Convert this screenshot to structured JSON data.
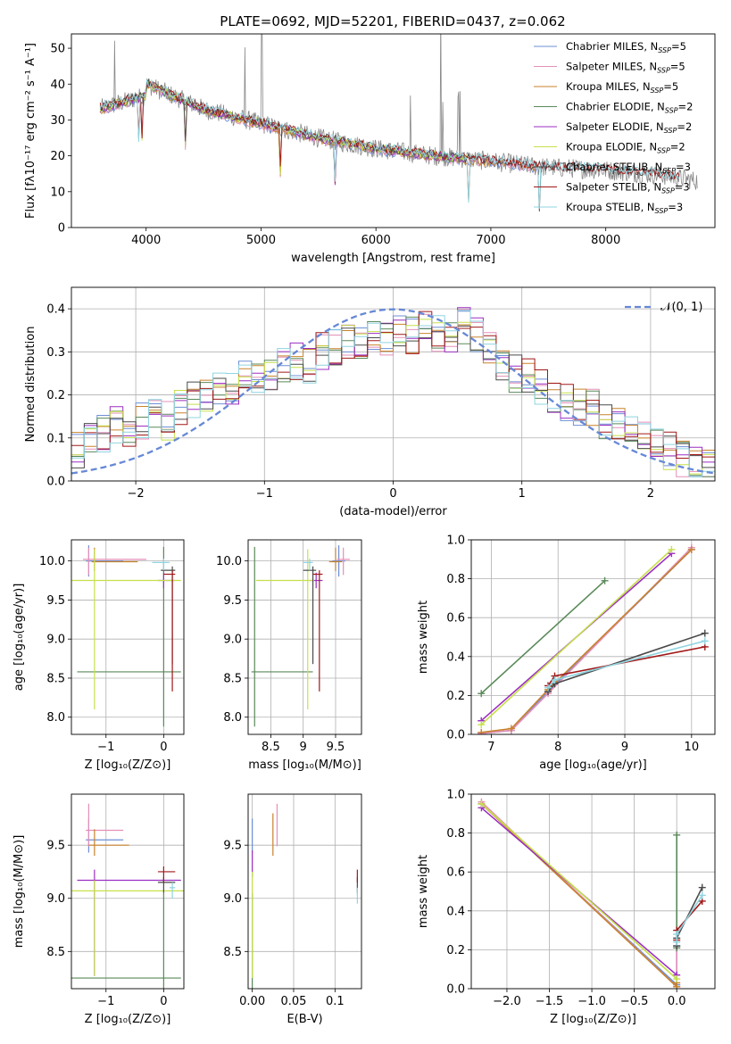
{
  "figure_title": "PLATE=0692, MJD=52201, FIBERID=0437, z=0.062",
  "palette": {
    "chabrier_miles": "#6d8fd6",
    "salpeter_miles": "#e48fb8",
    "kroupa_miles": "#c8822c",
    "chabrier_elodie": "#5a8a5a",
    "salpeter_elodie": "#9b2fc2",
    "kroupa_elodie": "#c6e04a",
    "chabrier_stelib": "#4a4a4a",
    "salpeter_stelib": "#a01818",
    "kroupa_stelib": "#8fd4e0",
    "data": "#888888",
    "gaussian": "#6688d6"
  },
  "chart_data": [
    {
      "id": "spectrum",
      "type": "line",
      "title": "PLATE=0692, MJD=52201, FIBERID=0437, z=0.062",
      "xlabel": "wavelength [Angstrom, rest frame]",
      "ylabel": "Flux [fλ10⁻¹⁷ erg cm⁻² s⁻¹ A⁻¹]",
      "xlim": [
        3350,
        8950
      ],
      "ylim": [
        0,
        54
      ],
      "xticks": [
        4000,
        5000,
        6000,
        7000,
        8000
      ],
      "yticks": [
        0,
        10,
        20,
        30,
        40,
        50
      ],
      "grid": false,
      "legend_position": "top-right",
      "legend": [
        {
          "label": "Chabrier MILES, N",
          "sub": "SSP",
          "tail": "=5",
          "color_key": "chabrier_miles"
        },
        {
          "label": "Salpeter MILES, N",
          "sub": "SSP",
          "tail": "=5",
          "color_key": "salpeter_miles"
        },
        {
          "label": "Kroupa MILES, N",
          "sub": "SSP",
          "tail": "=5",
          "color_key": "kroupa_miles"
        },
        {
          "label": "Chabrier ELODIE, N",
          "sub": "SSP",
          "tail": "=2",
          "color_key": "chabrier_elodie"
        },
        {
          "label": "Salpeter ELODIE, N",
          "sub": "SSP",
          "tail": "=2",
          "color_key": "salpeter_elodie"
        },
        {
          "label": "Kroupa ELODIE, N",
          "sub": "SSP",
          "tail": "=2",
          "color_key": "kroupa_elodie"
        },
        {
          "label": "Chabrier STELIB, N",
          "sub": "SSP",
          "tail": "=3",
          "color_key": "chabrier_stelib"
        },
        {
          "label": "Salpeter STELIB, N",
          "sub": "SSP",
          "tail": "=3",
          "color_key": "salpeter_stelib"
        },
        {
          "label": "Kroupa STELIB, N",
          "sub": "SSP",
          "tail": "=3",
          "color_key": "kroupa_stelib"
        }
      ],
      "continuum": {
        "x": [
          3600,
          4000,
          4500,
          5000,
          5500,
          6000,
          6500,
          7000,
          7400,
          8000,
          8500,
          8800
        ],
        "y": [
          36,
          40,
          33,
          29,
          25,
          22,
          20,
          18.5,
          17,
          16,
          14.5,
          13
        ]
      },
      "emission_lines": [
        3727,
        4861,
        5007,
        6300,
        6563,
        6583,
        6717,
        6731
      ],
      "absorption_lines": [
        3934,
        3969,
        4340,
        5170,
        5650,
        6800,
        7420
      ]
    },
    {
      "id": "residuals",
      "type": "step",
      "xlabel": "(data-model)/error",
      "ylabel": "Normed distribution",
      "xlim": [
        -2.5,
        2.5
      ],
      "ylim": [
        0,
        0.45
      ],
      "xticks": [
        -2,
        -1,
        0,
        1,
        2
      ],
      "yticks": [
        0.0,
        0.1,
        0.2,
        0.3,
        0.4
      ],
      "grid": true,
      "legend_position": "top-right",
      "legend": [
        {
          "label": "𝒩(0, 1)",
          "color_key": "gaussian"
        }
      ],
      "gaussian": {
        "mu": 0,
        "sigma": 1
      },
      "bins": {
        "start": -2.5,
        "width": 0.1
      },
      "hist_base": [
        0.07,
        0.1,
        0.11,
        0.13,
        0.12,
        0.14,
        0.15,
        0.14,
        0.17,
        0.19,
        0.2,
        0.21,
        0.22,
        0.24,
        0.25,
        0.24,
        0.27,
        0.28,
        0.27,
        0.3,
        0.31,
        0.33,
        0.32,
        0.34,
        0.33,
        0.35,
        0.34,
        0.36,
        0.34,
        0.33,
        0.36,
        0.34,
        0.3,
        0.27,
        0.25,
        0.24,
        0.22,
        0.2,
        0.18,
        0.17,
        0.17,
        0.14,
        0.13,
        0.12,
        0.1,
        0.08,
        0.07,
        0.05,
        0.04,
        0.03
      ]
    },
    {
      "id": "age_vs_Z",
      "type": "errorbar",
      "xlabel": "Z [log₁₀(Z/Z⊙)]",
      "ylabel": "age  [log₁₀(age/yr)]",
      "xlim": [
        -1.6,
        0.35
      ],
      "ylim": [
        7.78,
        10.27
      ],
      "xticks": [
        -1,
        0
      ],
      "yticks": [
        8.0,
        8.5,
        9.0,
        9.5,
        10.0
      ],
      "grid": true,
      "points": [
        {
          "model": "chabrier_miles",
          "x": -1.3,
          "xerr": [
            0.05,
            0.6
          ],
          "y": 10.0,
          "yerr": [
            0.2,
            0.2
          ]
        },
        {
          "model": "salpeter_miles",
          "x": -1.3,
          "xerr": [
            0.1,
            1.0
          ],
          "y": 10.02,
          "yerr": [
            0.2,
            0.15
          ]
        },
        {
          "model": "kroupa_miles",
          "x": -1.2,
          "xerr": [
            0.05,
            0.75
          ],
          "y": 9.99,
          "yerr": [
            0.12,
            0.18
          ]
        },
        {
          "model": "chabrier_elodie",
          "x": 0.0,
          "xerr": [
            1.5,
            0.3
          ],
          "y": 8.58,
          "yerr": [
            0.7,
            1.6
          ]
        },
        {
          "model": "salpeter_elodie",
          "x": 0.0,
          "xerr": [
            0.1,
            0.2
          ],
          "y": 9.75,
          "yerr": [
            0.1,
            0.1
          ]
        },
        {
          "model": "kroupa_elodie",
          "x": -1.2,
          "xerr": [
            0.4,
            1.5
          ],
          "y": 9.75,
          "yerr": [
            1.65,
            0.4
          ]
        },
        {
          "model": "chabrier_stelib",
          "x": 0.15,
          "xerr": [
            0.2,
            0.05
          ],
          "y": 9.88,
          "yerr": [
            1.2,
            0.05
          ]
        },
        {
          "model": "salpeter_stelib",
          "x": 0.15,
          "xerr": [
            0.15,
            0.05
          ],
          "y": 9.83,
          "yerr": [
            1.5,
            0.05
          ]
        },
        {
          "model": "kroupa_stelib",
          "x": 0.0,
          "xerr": [
            0.2,
            0.1
          ],
          "y": 9.98,
          "yerr": [
            0.1,
            0.05
          ]
        }
      ]
    },
    {
      "id": "age_vs_mass",
      "type": "errorbar",
      "xlabel": "mass [log₁₀(M/M⊙)]",
      "xlim": [
        8.15,
        9.9
      ],
      "ylim": [
        7.78,
        10.27
      ],
      "xticks": [
        8.5,
        9.0,
        9.5
      ],
      "yticks": [
        8.0,
        8.5,
        9.0,
        9.5,
        10.0
      ],
      "grid": true,
      "points": [
        {
          "model": "chabrier_miles",
          "x": 9.55,
          "xerr": [
            0.1,
            0.1
          ],
          "y": 10.0,
          "yerr": [
            0.2,
            0.2
          ]
        },
        {
          "model": "salpeter_miles",
          "x": 9.62,
          "xerr": [
            0.1,
            0.1
          ],
          "y": 10.02,
          "yerr": [
            0.2,
            0.15
          ]
        },
        {
          "model": "kroupa_miles",
          "x": 9.5,
          "xerr": [
            0.1,
            0.1
          ],
          "y": 9.99,
          "yerr": [
            0.12,
            0.18
          ]
        },
        {
          "model": "chabrier_elodie",
          "x": 8.25,
          "xerr": [
            0.05,
            0.9
          ],
          "y": 8.58,
          "yerr": [
            0.7,
            1.6
          ]
        },
        {
          "model": "salpeter_elodie",
          "x": 9.2,
          "xerr": [
            0.1,
            0.1
          ],
          "y": 9.75,
          "yerr": [
            0.1,
            0.1
          ]
        },
        {
          "model": "kroupa_elodie",
          "x": 9.07,
          "xerr": [
            0.8,
            0.1
          ],
          "y": 9.75,
          "yerr": [
            1.65,
            0.4
          ]
        },
        {
          "model": "chabrier_stelib",
          "x": 9.15,
          "xerr": [
            0.15,
            0.05
          ],
          "y": 9.88,
          "yerr": [
            1.2,
            0.05
          ]
        },
        {
          "model": "salpeter_stelib",
          "x": 9.25,
          "xerr": [
            0.1,
            0.05
          ],
          "y": 9.83,
          "yerr": [
            1.5,
            0.05
          ]
        },
        {
          "model": "kroupa_stelib",
          "x": 9.1,
          "xerr": [
            0.1,
            0.05
          ],
          "y": 9.98,
          "yerr": [
            0.1,
            0.05
          ]
        }
      ]
    },
    {
      "id": "weight_vs_age",
      "type": "line",
      "xlabel": "age  [log₁₀(age/yr)]",
      "ylabel": "mass weight",
      "xlim": [
        6.7,
        10.35
      ],
      "ylim": [
        0,
        1.0
      ],
      "xticks": [
        7,
        8,
        9,
        10
      ],
      "yticks": [
        0.0,
        0.2,
        0.4,
        0.6,
        0.8,
        1.0
      ],
      "grid": true,
      "series": [
        {
          "model": "chabrier_miles",
          "x": [
            6.85,
            7.3,
            7.85,
            10.0
          ],
          "y": [
            0.005,
            0.02,
            0.22,
            0.95
          ]
        },
        {
          "model": "salpeter_miles",
          "x": [
            6.85,
            7.3,
            7.85,
            10.0
          ],
          "y": [
            0.005,
            0.02,
            0.21,
            0.96
          ]
        },
        {
          "model": "kroupa_miles",
          "x": [
            6.85,
            7.3,
            7.85,
            10.0
          ],
          "y": [
            0.01,
            0.03,
            0.23,
            0.95
          ]
        },
        {
          "model": "chabrier_elodie",
          "x": [
            6.85,
            8.7
          ],
          "y": [
            0.21,
            0.79
          ]
        },
        {
          "model": "salpeter_elodie",
          "x": [
            6.85,
            9.7
          ],
          "y": [
            0.07,
            0.93
          ]
        },
        {
          "model": "kroupa_elodie",
          "x": [
            6.85,
            9.7
          ],
          "y": [
            0.05,
            0.95
          ]
        },
        {
          "model": "chabrier_stelib",
          "x": [
            7.85,
            7.95,
            10.2
          ],
          "y": [
            0.22,
            0.26,
            0.52
          ]
        },
        {
          "model": "salpeter_stelib",
          "x": [
            7.85,
            7.95,
            10.2
          ],
          "y": [
            0.25,
            0.3,
            0.45
          ]
        },
        {
          "model": "kroupa_stelib",
          "x": [
            7.85,
            7.95,
            10.2
          ],
          "y": [
            0.24,
            0.28,
            0.48
          ]
        }
      ]
    },
    {
      "id": "mass_vs_Z",
      "type": "errorbar",
      "xlabel": "Z [log₁₀(Z/Z⊙)]",
      "ylabel": "mass [log₁₀(M/M⊙)]",
      "xlim": [
        -1.6,
        0.35
      ],
      "ylim": [
        8.15,
        9.98
      ],
      "xticks": [
        -1,
        0
      ],
      "yticks": [
        8.5,
        9.0,
        9.5
      ],
      "grid": true,
      "points": [
        {
          "model": "chabrier_miles",
          "x": -1.3,
          "xerr": [
            0.05,
            0.6
          ],
          "y": 9.55,
          "yerr": [
            0.12,
            0.2
          ]
        },
        {
          "model": "salpeter_miles",
          "x": -1.3,
          "xerr": [
            0.05,
            0.6
          ],
          "y": 9.64,
          "yerr": [
            0.15,
            0.25
          ]
        },
        {
          "model": "kroupa_miles",
          "x": -1.2,
          "xerr": [
            0.1,
            0.6
          ],
          "y": 9.5,
          "yerr": [
            0.1,
            0.15
          ]
        },
        {
          "model": "chabrier_elodie",
          "x": 0.0,
          "xerr": [
            1.6,
            0.3
          ],
          "y": 8.25,
          "yerr": [
            0.1,
            0.8
          ]
        },
        {
          "model": "salpeter_elodie",
          "x": -1.2,
          "xerr": [
            0.3,
            1.5
          ],
          "y": 9.17,
          "yerr": [
            0.9,
            0.1
          ]
        },
        {
          "model": "kroupa_elodie",
          "x": -1.2,
          "xerr": [
            0.4,
            1.6
          ],
          "y": 9.07,
          "yerr": [
            0.8,
            0.1
          ]
        },
        {
          "model": "chabrier_stelib",
          "x": 0.0,
          "xerr": [
            0.1,
            0.2
          ],
          "y": 9.15,
          "yerr": [
            0.1,
            0.05
          ]
        },
        {
          "model": "salpeter_stelib",
          "x": 0.0,
          "xerr": [
            0.1,
            0.2
          ],
          "y": 9.25,
          "yerr": [
            0.1,
            0.05
          ]
        },
        {
          "model": "kroupa_stelib",
          "x": 0.15,
          "xerr": [
            0.05,
            0.05
          ],
          "y": 9.1,
          "yerr": [
            0.1,
            0.05
          ]
        }
      ]
    },
    {
      "id": "mass_vs_ebv",
      "type": "errorbar",
      "xlabel": "E(B-V)",
      "xlim": [
        -0.005,
        0.132
      ],
      "ylim": [
        8.15,
        9.98
      ],
      "xticks": [
        0.0,
        0.05,
        0.1
      ],
      "yticks": [
        8.5,
        9.0,
        9.5
      ],
      "grid": true,
      "points": [
        {
          "model": "chabrier_miles",
          "x": 0.0,
          "y": 9.55,
          "yerr": [
            0.12,
            0.2
          ]
        },
        {
          "model": "salpeter_miles",
          "x": 0.03,
          "y": 9.64,
          "yerr": [
            0.15,
            0.25
          ]
        },
        {
          "model": "kroupa_miles",
          "x": 0.025,
          "y": 9.6,
          "yerr": [
            0.2,
            0.2
          ]
        },
        {
          "model": "chabrier_elodie",
          "x": 0.0,
          "y": 8.25,
          "yerr": [
            0.1,
            0.8
          ]
        },
        {
          "model": "salpeter_elodie",
          "x": 0.0,
          "y": 9.3,
          "yerr": [
            0.1,
            0.15
          ]
        },
        {
          "model": "kroupa_elodie",
          "x": 0.0,
          "y": 8.75,
          "yerr": [
            0.5,
            0.5
          ]
        },
        {
          "model": "chabrier_stelib",
          "x": 0.127,
          "y": 9.1,
          "yerr": [
            0.05,
            0.1
          ]
        },
        {
          "model": "salpeter_stelib",
          "x": 0.127,
          "y": 9.2,
          "yerr": [
            0.05,
            0.07
          ]
        },
        {
          "model": "kroupa_stelib",
          "x": 0.127,
          "y": 9.05,
          "yerr": [
            0.1,
            0.05
          ]
        }
      ]
    },
    {
      "id": "weight_vs_Z",
      "type": "line",
      "xlabel": "Z [log₁₀(Z/Z⊙)]",
      "ylabel": "mass weight",
      "xlim": [
        -2.42,
        0.45
      ],
      "ylim": [
        0,
        1.0
      ],
      "xticks": [
        -2.0,
        -1.5,
        -1.0,
        -0.5,
        0.0
      ],
      "yticks": [
        0.0,
        0.2,
        0.4,
        0.6,
        0.8,
        1.0
      ],
      "grid": true,
      "series": [
        {
          "model": "chabrier_miles",
          "x": [
            -2.3,
            0.0,
            0.0
          ],
          "y": [
            0.95,
            0.02,
            0.22
          ]
        },
        {
          "model": "salpeter_miles",
          "x": [
            -2.3,
            0.0,
            0.0
          ],
          "y": [
            0.96,
            0.01,
            0.21
          ]
        },
        {
          "model": "kroupa_miles",
          "x": [
            -2.3,
            0.0,
            0.0
          ],
          "y": [
            0.95,
            0.01,
            0.03
          ]
        },
        {
          "model": "chabrier_elodie",
          "x": [
            0.0,
            0.0
          ],
          "y": [
            0.21,
            0.79
          ]
        },
        {
          "model": "salpeter_elodie",
          "x": [
            -2.3,
            0.0
          ],
          "y": [
            0.93,
            0.07
          ]
        },
        {
          "model": "kroupa_elodie",
          "x": [
            -2.3,
            0.0
          ],
          "y": [
            0.95,
            0.05
          ]
        },
        {
          "model": "chabrier_stelib",
          "x": [
            0.0,
            0.0,
            0.3
          ],
          "y": [
            0.22,
            0.26,
            0.52
          ]
        },
        {
          "model": "salpeter_stelib",
          "x": [
            0.0,
            0.0,
            0.3
          ],
          "y": [
            0.25,
            0.3,
            0.45
          ]
        },
        {
          "model": "kroupa_stelib",
          "x": [
            0.0,
            0.0,
            0.3
          ],
          "y": [
            0.24,
            0.28,
            0.48
          ]
        }
      ]
    }
  ]
}
